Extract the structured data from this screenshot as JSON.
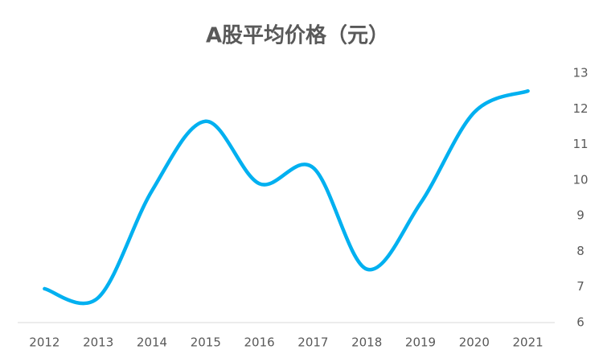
{
  "chart_data": {
    "type": "line",
    "title": "A股平均价格（元）",
    "categories": [
      "2012",
      "2013",
      "2014",
      "2015",
      "2016",
      "2017",
      "2018",
      "2019",
      "2020",
      "2021"
    ],
    "series": [
      {
        "name": "A股平均价格",
        "color": "#00b0f0",
        "values": [
          6.95,
          6.7,
          9.7,
          11.65,
          9.9,
          10.35,
          7.5,
          9.35,
          11.9,
          12.5
        ]
      }
    ],
    "ylim": [
      6,
      13
    ],
    "yticks": [
      6,
      7,
      8,
      9,
      10,
      11,
      12,
      13
    ],
    "y_axis_side": "right",
    "smooth": true,
    "grid": false
  }
}
